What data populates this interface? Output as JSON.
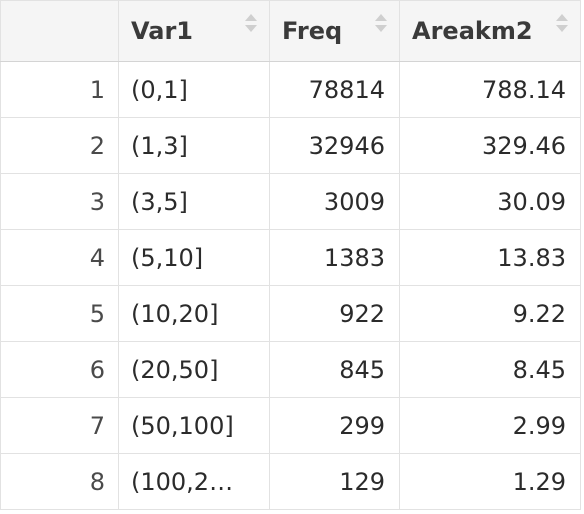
{
  "table": {
    "columns": [
      "Var1",
      "Freq",
      "Areakm2"
    ],
    "rows": [
      {
        "n": "1",
        "var1": "(0,1]",
        "freq": "78814",
        "area": "788.14"
      },
      {
        "n": "2",
        "var1": "(1,3]",
        "freq": "32946",
        "area": "329.46"
      },
      {
        "n": "3",
        "var1": "(3,5]",
        "freq": "3009",
        "area": "30.09"
      },
      {
        "n": "4",
        "var1": "(5,10]",
        "freq": "1383",
        "area": "13.83"
      },
      {
        "n": "5",
        "var1": "(10,20]",
        "freq": "922",
        "area": "9.22"
      },
      {
        "n": "6",
        "var1": "(20,50]",
        "freq": "845",
        "area": "8.45"
      },
      {
        "n": "7",
        "var1": "(50,100]",
        "freq": "299",
        "area": "2.99"
      },
      {
        "n": "8",
        "var1": "(100,2…",
        "freq": "129",
        "area": "1.29"
      }
    ]
  }
}
